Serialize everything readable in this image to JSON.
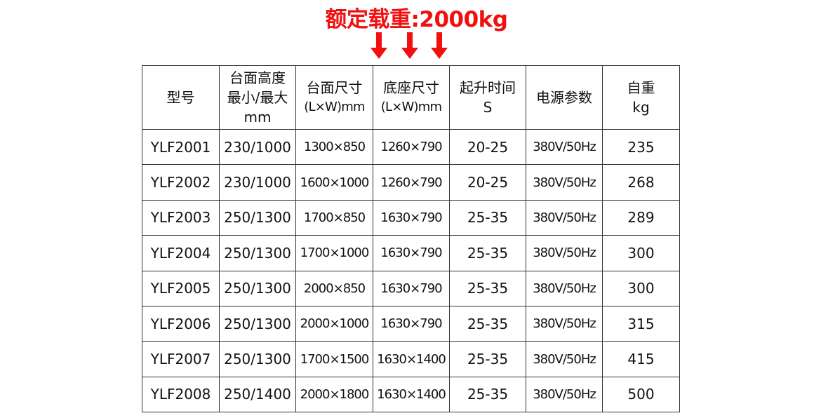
{
  "title": "额定载重:2000kg",
  "accent_color": "#f01010",
  "arrows": [
    "arrow-down-icon",
    "arrow-down-icon",
    "arrow-down-icon"
  ],
  "table": {
    "headers": [
      {
        "line1": "型号",
        "line2": "",
        "line3": ""
      },
      {
        "line1": "台面高度",
        "line2": "最小/最大",
        "line3": "mm"
      },
      {
        "line1": "台面尺寸",
        "line2": "(L×W)mm",
        "line3": ""
      },
      {
        "line1": "底座尺寸",
        "line2": "(L×W)mm",
        "line3": ""
      },
      {
        "line1": "起升时间",
        "line2": "S",
        "line3": ""
      },
      {
        "line1": "电源参数",
        "line2": "",
        "line3": ""
      },
      {
        "line1": "自重",
        "line2": "kg",
        "line3": ""
      }
    ],
    "rows": [
      [
        "YLF2001",
        "230/1000",
        "1300×850",
        "1260×790",
        "20-25",
        "380V/50Hz",
        "235"
      ],
      [
        "YLF2002",
        "230/1000",
        "1600×1000",
        "1260×790",
        "20-25",
        "380V/50Hz",
        "268"
      ],
      [
        "YLF2003",
        "250/1300",
        "1700×850",
        "1630×790",
        "25-35",
        "380V/50Hz",
        "289"
      ],
      [
        "YLF2004",
        "250/1300",
        "1700×1000",
        "1630×790",
        "25-35",
        "380V/50Hz",
        "300"
      ],
      [
        "YLF2005",
        "250/1300",
        "2000×850",
        "1630×790",
        "25-35",
        "380V/50Hz",
        "300"
      ],
      [
        "YLF2006",
        "250/1300",
        "2000×1000",
        "1630×790",
        "25-35",
        "380V/50Hz",
        "315"
      ],
      [
        "YLF2007",
        "250/1300",
        "1700×1500",
        "1630×1400",
        "25-35",
        "380V/50Hz",
        "415"
      ],
      [
        "YLF2008",
        "250/1400",
        "2000×1800",
        "1630×1400",
        "25-35",
        "380V/50Hz",
        "500"
      ]
    ]
  }
}
